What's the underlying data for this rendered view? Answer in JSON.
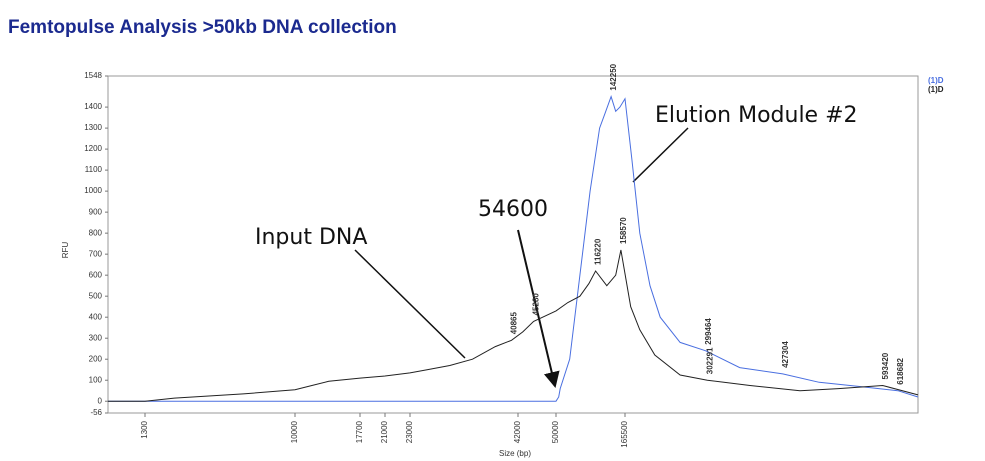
{
  "chart_data": {
    "type": "line",
    "title": "Femtopulse Analysis >50kb DNA collection",
    "xlabel": "Size (bp)",
    "ylabel": "RFU",
    "xscale": "ladder",
    "xlim": [
      0,
      652000
    ],
    "xticks": [
      1300,
      10000,
      17700,
      21000,
      23000,
      42000,
      50000,
      165500
    ],
    "ylim": [
      -56,
      1548
    ],
    "yticks": [
      -56,
      0,
      100,
      200,
      300,
      400,
      500,
      600,
      700,
      800,
      900,
      1000,
      1100,
      1200,
      1300,
      1400,
      1548
    ],
    "legend": "top-right",
    "series": [
      {
        "name": "(1)D",
        "color": "#4a6fe0",
        "x": [
          0,
          1300,
          10000,
          23000,
          42000,
          50000,
          54600,
          57000,
          73000,
          90000,
          107000,
          123000,
          132000,
          142250,
          150000,
          157000,
          165500,
          177000,
          190000,
          207000,
          224000,
          257000,
          299464,
          356000,
          427304,
          488000,
          555000,
          618682,
          652000
        ],
        "values": [
          0,
          0,
          0,
          0,
          0,
          0,
          20,
          60,
          200,
          600,
          1000,
          1300,
          1370,
          1450,
          1380,
          1400,
          1440,
          1150,
          800,
          550,
          400,
          280,
          240,
          160,
          130,
          90,
          70,
          50,
          20
        ],
        "peaks": [
          142250,
          299464,
          427304,
          618682
        ]
      },
      {
        "name": "(1)D",
        "color": "#222222",
        "x": [
          0,
          1300,
          3000,
          5000,
          7000,
          10000,
          12000,
          14000,
          17700,
          21000,
          23000,
          26000,
          30000,
          34000,
          38000,
          40865,
          43000,
          45280,
          50000,
          70000,
          90000,
          105000,
          116220,
          135000,
          150000,
          158570,
          175000,
          190000,
          215000,
          257000,
          302291,
          373000,
          456000,
          520000,
          593420,
          652000
        ],
        "values": [
          0,
          0,
          15,
          25,
          35,
          55,
          75,
          95,
          110,
          120,
          135,
          150,
          170,
          200,
          260,
          290,
          330,
          380,
          430,
          470,
          500,
          560,
          620,
          550,
          600,
          720,
          450,
          340,
          220,
          125,
          100,
          75,
          50,
          60,
          75,
          30
        ],
        "peaks": [
          40865,
          45280,
          116220,
          158570,
          302291,
          593420
        ]
      }
    ],
    "annotations": [
      {
        "text": "Input DNA"
      },
      {
        "text": "54600"
      },
      {
        "text": "Elution Module #2"
      }
    ]
  }
}
